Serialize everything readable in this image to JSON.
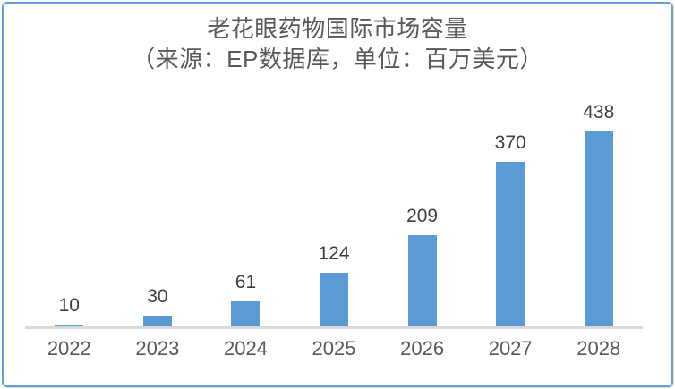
{
  "title": {
    "line1": "老花眼药物国际市场容量",
    "line2": "（来源：EP数据库，单位：百万美元）"
  },
  "chart_data": {
    "type": "bar",
    "categories": [
      "2022",
      "2023",
      "2024",
      "2025",
      "2026",
      "2027",
      "2028"
    ],
    "values": [
      10,
      30,
      61,
      124,
      209,
      370,
      438
    ],
    "title": "老花眼药物国际市场容量",
    "subtitle": "（来源：EP数据库，单位：百万美元）",
    "xlabel": "",
    "ylabel": "",
    "ylim": [
      0,
      460
    ],
    "grid": false,
    "legend": false,
    "data_labels": true
  },
  "colors": {
    "bar": "#5b9bd5",
    "frame_border": "#63a0d8",
    "axis_line": "#d9d9d9",
    "title_text": "#595959",
    "data_label_text": "#3f3f3f",
    "category_text": "#595959",
    "background": "#ffffff"
  }
}
